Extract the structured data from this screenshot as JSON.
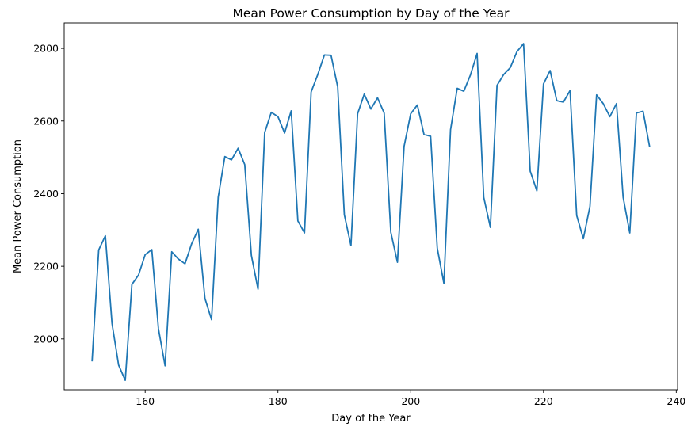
{
  "chart_data": {
    "type": "line",
    "title": "Mean Power Consumption by Day of the Year",
    "xlabel": "Day of the Year",
    "ylabel": "Mean Power Consumption",
    "xlim": [
      147.8,
      240.2
    ],
    "ylim": [
      1860,
      2870
    ],
    "xticks": [
      160,
      180,
      200,
      220,
      240
    ],
    "yticks": [
      2000,
      2200,
      2400,
      2600,
      2800
    ],
    "grid": false,
    "color": "#1f77b4",
    "series": [
      {
        "x": [
          152,
          153,
          154,
          155,
          156,
          157,
          158,
          159,
          160,
          161,
          162,
          163,
          164,
          165,
          166,
          167,
          168,
          169,
          170,
          171,
          172,
          173,
          174,
          175,
          176,
          177,
          178,
          179,
          180,
          181,
          182,
          183,
          184,
          185,
          186,
          187,
          188,
          189,
          190,
          191,
          192,
          193,
          194,
          195,
          196,
          197,
          198,
          199,
          200,
          201,
          202,
          203,
          204,
          205,
          206,
          207,
          208,
          209,
          210,
          211,
          212,
          213,
          214,
          215,
          216,
          217,
          218,
          219,
          220,
          221,
          222,
          223,
          224,
          225,
          226,
          227,
          228,
          229,
          230,
          231,
          232,
          233,
          234,
          235,
          236
        ],
        "y": [
          1938,
          2245,
          2284,
          2043,
          1928,
          1886,
          2150,
          2176,
          2232,
          2246,
          2028,
          1926,
          2240,
          2220,
          2207,
          2262,
          2302,
          2112,
          2053,
          2390,
          2502,
          2493,
          2525,
          2480,
          2230,
          2137,
          2568,
          2624,
          2612,
          2567,
          2628,
          2325,
          2292,
          2680,
          2728,
          2782,
          2781,
          2694,
          2342,
          2257,
          2620,
          2674,
          2633,
          2664,
          2622,
          2294,
          2211,
          2530,
          2620,
          2644,
          2563,
          2558,
          2250,
          2153,
          2576,
          2690,
          2682,
          2727,
          2786,
          2390,
          2307,
          2698,
          2728,
          2747,
          2791,
          2813,
          2462,
          2408,
          2702,
          2739,
          2656,
          2652,
          2684,
          2340,
          2276,
          2365,
          2672,
          2648,
          2612,
          2648,
          2390,
          2292,
          2622,
          2627,
          2528
        ]
      }
    ]
  }
}
